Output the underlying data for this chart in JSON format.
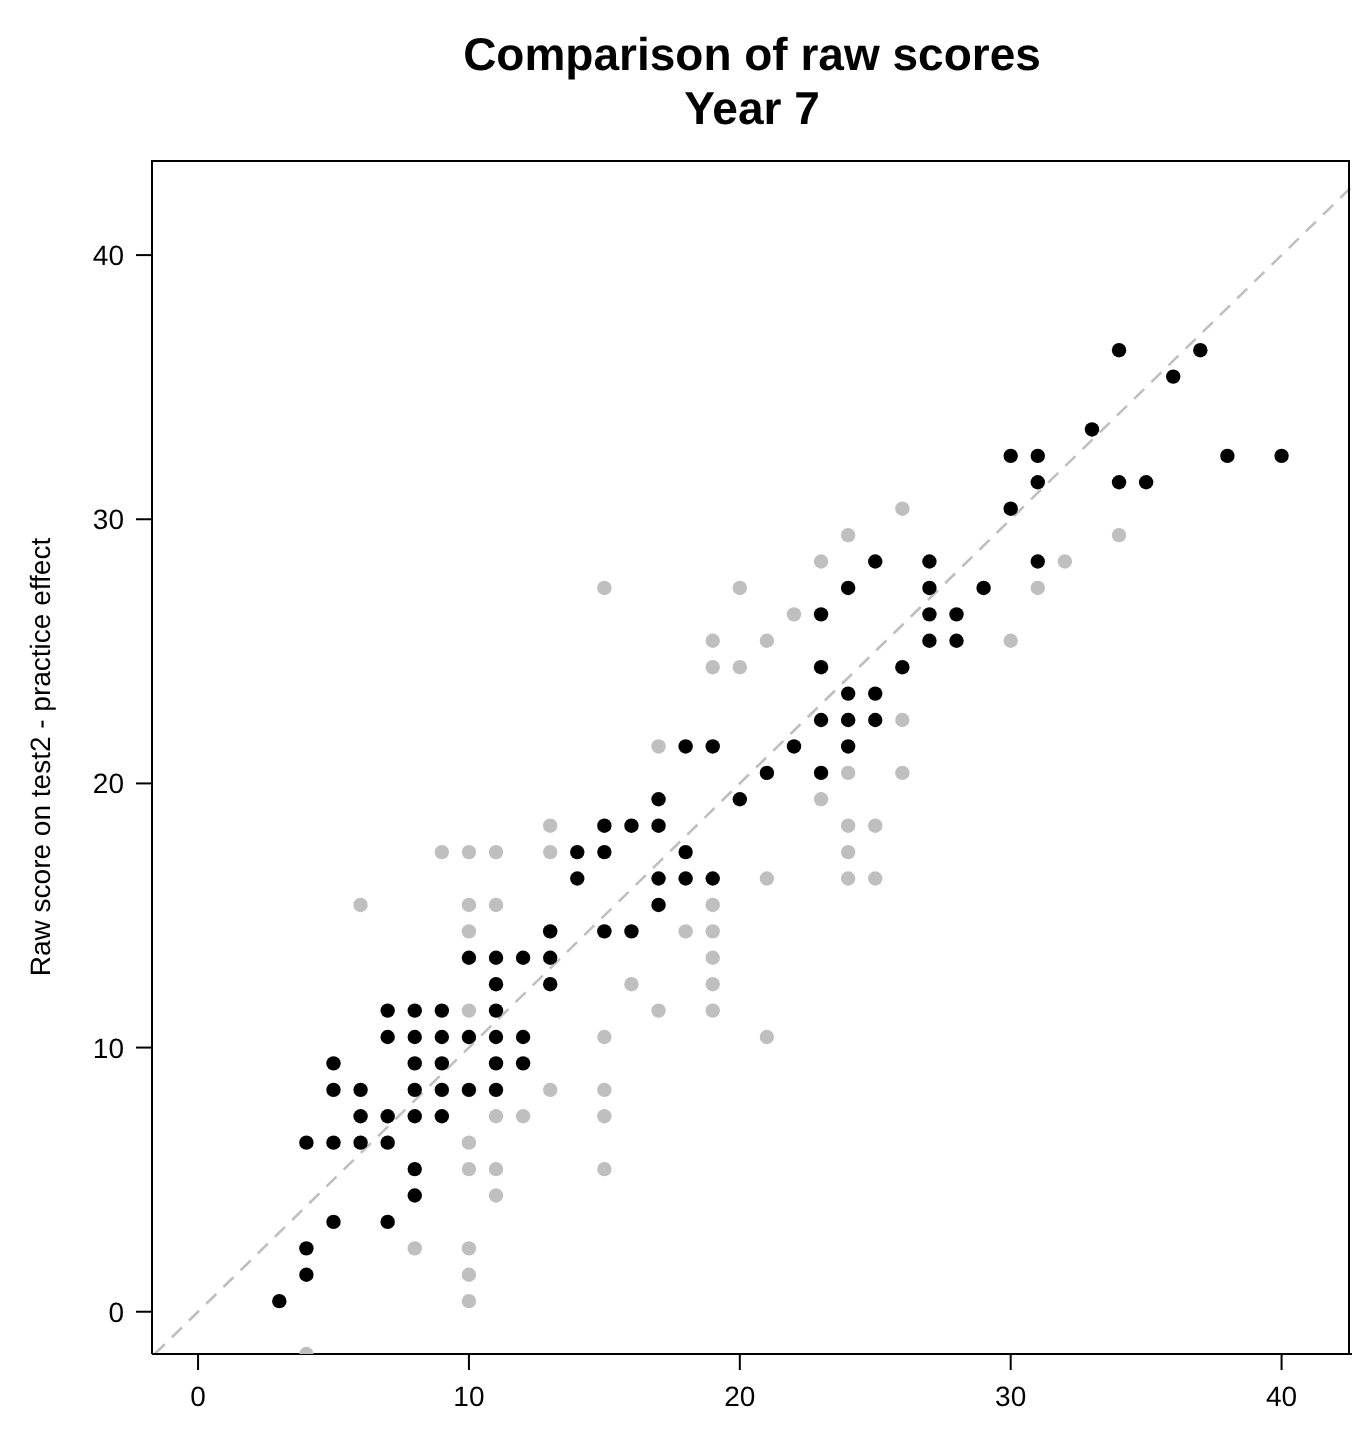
{
  "chart_data": {
    "type": "scatter",
    "title": "Comparison of raw scores",
    "subtitle": "Year 7",
    "ylabel": "Raw score on test2 - practice effect",
    "xlim": [
      -1.7,
      42.6
    ],
    "ylim": [
      -1.6,
      43.6
    ],
    "xticks": [
      0,
      10,
      20,
      30,
      40
    ],
    "yticks": [
      0,
      10,
      20,
      30,
      40
    ],
    "grid": false,
    "series": [
      {
        "type": "scatter",
        "color": "#bfbfbf",
        "marker": "circle",
        "x": [
          17,
          4,
          8,
          10,
          10,
          10,
          10,
          11,
          10,
          11,
          11,
          12,
          10,
          13,
          10,
          10,
          11,
          13,
          6,
          10,
          11,
          9,
          10,
          13,
          13,
          15,
          15,
          15,
          15,
          15,
          16,
          17,
          19,
          19,
          19,
          19,
          19,
          18,
          21,
          21,
          24,
          24,
          25,
          24,
          25,
          24,
          23,
          26,
          24,
          26,
          19,
          19,
          20,
          22,
          21,
          23,
          20,
          15,
          24,
          26,
          34,
          32,
          31,
          30
        ],
        "values": [
          21.4,
          -1.6,
          2.4,
          2.4,
          1.4,
          0.4,
          5.4,
          5.4,
          6.4,
          4.4,
          7.4,
          7.4,
          10.4,
          8.4,
          14.4,
          15.4,
          15.4,
          17.4,
          15.4,
          17.4,
          17.4,
          17.4,
          11.4,
          18.4,
          14.4,
          10.4,
          8.4,
          7.4,
          5.4,
          14.4,
          12.4,
          11.4,
          12.4,
          11.4,
          13.4,
          14.4,
          15.4,
          14.4,
          10.4,
          16.4,
          16.4,
          17.4,
          16.4,
          18.4,
          18.4,
          20.4,
          19.4,
          20.4,
          22.4,
          22.4,
          24.4,
          25.4,
          24.4,
          26.4,
          25.4,
          28.4,
          27.4,
          27.4,
          29.4,
          30.4,
          29.4,
          28.4,
          27.4,
          25.4
        ]
      },
      {
        "type": "scatter",
        "color": "#000000",
        "marker": "circle",
        "x": [
          3,
          4,
          4,
          4,
          5,
          5,
          5,
          5,
          6,
          6,
          6,
          7,
          7,
          7,
          7,
          7,
          8,
          8,
          8,
          8,
          8,
          8,
          8,
          9,
          9,
          9,
          9,
          9,
          10,
          10,
          10,
          11,
          11,
          11,
          11,
          11,
          11,
          12,
          12,
          12,
          13,
          13,
          13,
          14,
          14,
          15,
          15,
          15,
          16,
          16,
          17,
          17,
          17,
          17,
          18,
          18,
          18,
          19,
          19,
          20,
          21,
          22,
          23,
          23,
          23,
          23,
          24,
          24,
          24,
          24,
          25,
          25,
          25,
          26,
          27,
          27,
          27,
          27,
          28,
          28,
          29,
          30,
          30,
          31,
          31,
          31,
          33,
          34,
          34,
          35,
          36,
          37,
          38,
          40
        ],
        "values": [
          0.4,
          1.4,
          2.4,
          6.4,
          3.4,
          6.4,
          8.4,
          9.4,
          6.4,
          7.4,
          8.4,
          3.4,
          6.4,
          7.4,
          10.4,
          11.4,
          4.4,
          5.4,
          7.4,
          8.4,
          9.4,
          10.4,
          11.4,
          7.4,
          8.4,
          9.4,
          10.4,
          11.4,
          8.4,
          10.4,
          13.4,
          8.4,
          9.4,
          10.4,
          11.4,
          12.4,
          13.4,
          9.4,
          10.4,
          13.4,
          12.4,
          13.4,
          14.4,
          16.4,
          17.4,
          14.4,
          17.4,
          18.4,
          14.4,
          18.4,
          15.4,
          16.4,
          18.4,
          19.4,
          16.4,
          17.4,
          21.4,
          16.4,
          21.4,
          19.4,
          20.4,
          21.4,
          20.4,
          22.4,
          24.4,
          26.4,
          21.4,
          22.4,
          23.4,
          27.4,
          22.4,
          23.4,
          28.4,
          24.4,
          25.4,
          26.4,
          27.4,
          28.4,
          25.4,
          26.4,
          27.4,
          30.4,
          32.4,
          28.4,
          31.4,
          32.4,
          33.4,
          31.4,
          36.4,
          31.4,
          35.4,
          36.4,
          32.4,
          32.4
        ]
      },
      {
        "type": "line",
        "color": "#bfbfbf",
        "line_style": "dashed",
        "x": [
          -1.6,
          42.6
        ],
        "values": [
          -1.6,
          42.6
        ]
      }
    ]
  }
}
